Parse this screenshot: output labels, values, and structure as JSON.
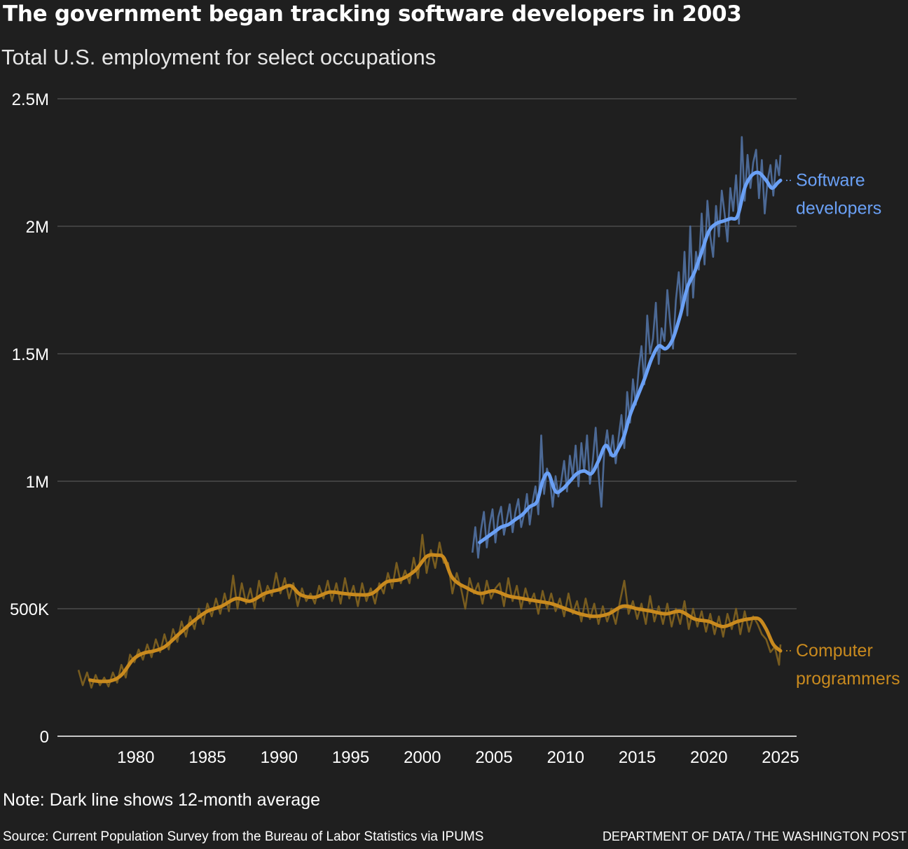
{
  "header": {
    "title": "The government began tracking software developers in 2003",
    "subtitle": "Total U.S. employment for select occupations"
  },
  "footer": {
    "note": "Note: Dark line shows 12-month average",
    "source": "Source: Current Population Survey from the Bureau of Labor Statistics via IPUMS",
    "credit": "DEPARTMENT OF DATA / THE WASHINGTON POST"
  },
  "colors": {
    "background": "#1f1f1f",
    "software_avg": "#6aa0f5",
    "software_raw": "#4f6e9c",
    "programmers_avg": "#c98a1e",
    "programmers_raw": "#7d6020",
    "grid": "#555555"
  },
  "chart_data": {
    "type": "line",
    "title": "The government began tracking software developers in 2003",
    "subtitle": "Total U.S. employment for select occupations",
    "xlabel": "",
    "ylabel": "",
    "xlim": [
      1976,
      2025
    ],
    "ylim": [
      0,
      2500000
    ],
    "x_ticks": [
      1980,
      1985,
      1990,
      1995,
      2000,
      2005,
      2010,
      2015,
      2020,
      2025
    ],
    "y_ticks": [
      0,
      500000,
      1000000,
      1500000,
      2000000,
      2500000
    ],
    "y_tick_labels": [
      "0",
      "500K",
      "1M",
      "1.5M",
      "2M",
      "2.5M"
    ],
    "grid": true,
    "series": [
      {
        "name": "Software developers",
        "label_lines": [
          "Software",
          "developers"
        ],
        "average": {
          "x": [
            2004.0,
            2004.5,
            2005.0,
            2005.5,
            2006.0,
            2006.5,
            2007.0,
            2007.5,
            2008.0,
            2008.4,
            2008.8,
            2009.3,
            2009.8,
            2010.3,
            2010.8,
            2011.3,
            2011.8,
            2012.3,
            2012.8,
            2013.3,
            2013.7,
            2014.1,
            2014.5,
            2015.0,
            2015.5,
            2016.0,
            2016.5,
            2017.0,
            2017.5,
            2018.0,
            2018.5,
            2019.0,
            2019.5,
            2020.0,
            2020.5,
            2021.0,
            2021.5,
            2022.0,
            2022.5,
            2023.0,
            2023.5,
            2024.0,
            2024.4,
            2024.8,
            2025.0
          ],
          "y": [
            760000,
            780000,
            800000,
            820000,
            830000,
            850000,
            870000,
            900000,
            920000,
            1000000,
            1030000,
            960000,
            970000,
            1000000,
            1030000,
            1040000,
            1030000,
            1080000,
            1140000,
            1100000,
            1130000,
            1180000,
            1260000,
            1330000,
            1400000,
            1480000,
            1530000,
            1520000,
            1560000,
            1650000,
            1760000,
            1820000,
            1900000,
            1980000,
            2010000,
            2020000,
            2030000,
            2040000,
            2150000,
            2200000,
            2210000,
            2180000,
            2150000,
            2170000,
            2180000
          ]
        },
        "monthly": {
          "x": [
            2003.5,
            2003.7,
            2003.9,
            2004.1,
            2004.3,
            2004.5,
            2004.7,
            2004.9,
            2005.1,
            2005.3,
            2005.5,
            2005.7,
            2005.9,
            2006.1,
            2006.3,
            2006.5,
            2006.7,
            2006.9,
            2007.1,
            2007.3,
            2007.5,
            2007.7,
            2007.9,
            2008.1,
            2008.3,
            2008.5,
            2008.7,
            2008.9,
            2009.1,
            2009.3,
            2009.5,
            2009.7,
            2009.9,
            2010.1,
            2010.3,
            2010.5,
            2010.7,
            2010.9,
            2011.1,
            2011.3,
            2011.5,
            2011.7,
            2011.9,
            2012.1,
            2012.3,
            2012.5,
            2012.7,
            2012.9,
            2013.1,
            2013.3,
            2013.5,
            2013.7,
            2013.9,
            2014.1,
            2014.3,
            2014.5,
            2014.7,
            2014.9,
            2015.1,
            2015.3,
            2015.5,
            2015.7,
            2015.9,
            2016.1,
            2016.3,
            2016.5,
            2016.7,
            2016.9,
            2017.1,
            2017.3,
            2017.5,
            2017.7,
            2017.9,
            2018.1,
            2018.3,
            2018.5,
            2018.7,
            2018.9,
            2019.1,
            2019.3,
            2019.5,
            2019.7,
            2019.9,
            2020.1,
            2020.3,
            2020.5,
            2020.7,
            2020.9,
            2021.1,
            2021.3,
            2021.5,
            2021.7,
            2021.9,
            2022.1,
            2022.3,
            2022.5,
            2022.7,
            2022.9,
            2023.1,
            2023.3,
            2023.5,
            2023.7,
            2023.9,
            2024.1,
            2024.3,
            2024.5,
            2024.7,
            2024.9,
            2025.0
          ],
          "y": [
            720000,
            820000,
            700000,
            810000,
            880000,
            740000,
            830000,
            890000,
            760000,
            860000,
            900000,
            790000,
            850000,
            910000,
            800000,
            880000,
            930000,
            820000,
            870000,
            950000,
            830000,
            920000,
            980000,
            870000,
            1180000,
            950000,
            1050000,
            1010000,
            900000,
            1020000,
            940000,
            1000000,
            1080000,
            960000,
            1100000,
            1020000,
            1140000,
            980000,
            1150000,
            1040000,
            1180000,
            990000,
            1080000,
            1210000,
            1030000,
            900000,
            1120000,
            1200000,
            1100000,
            1180000,
            1070000,
            1170000,
            1260000,
            1130000,
            1350000,
            1230000,
            1400000,
            1300000,
            1440000,
            1530000,
            1380000,
            1650000,
            1500000,
            1560000,
            1700000,
            1460000,
            1600000,
            1550000,
            1750000,
            1620000,
            1520000,
            1710000,
            1820000,
            1660000,
            1900000,
            1650000,
            2000000,
            1720000,
            1900000,
            1830000,
            2050000,
            1850000,
            2100000,
            1960000,
            1880000,
            2080000,
            1960000,
            2140000,
            2050000,
            1940000,
            2150000,
            2060000,
            2200000,
            2010000,
            2350000,
            2100000,
            2280000,
            2150000,
            2250000,
            2300000,
            2110000,
            2260000,
            2050000,
            2180000,
            2240000,
            2120000,
            2260000,
            2200000,
            2280000
          ]
        }
      },
      {
        "name": "Computer programmers",
        "label_lines": [
          "Computer",
          "programmers"
        ],
        "average": {
          "x": [
            1976.8,
            1977.5,
            1978.3,
            1979.0,
            1979.8,
            1980.5,
            1981.3,
            1982.0,
            1983.0,
            1984.0,
            1985.0,
            1986.0,
            1987.0,
            1988.0,
            1989.0,
            1990.0,
            1990.8,
            1991.5,
            1992.5,
            1993.5,
            1994.5,
            1995.5,
            1996.5,
            1997.5,
            1998.5,
            1999.5,
            2000.3,
            2001.0,
            2001.5,
            2002.0,
            2002.5,
            2003.0,
            2004.0,
            2005.0,
            2006.0,
            2007.0,
            2008.0,
            2009.0,
            2010.0,
            2011.0,
            2012.0,
            2013.0,
            2014.0,
            2015.0,
            2016.0,
            2017.0,
            2018.0,
            2019.0,
            2020.0,
            2021.0,
            2022.0,
            2022.8,
            2023.5,
            2024.0,
            2024.5,
            2025.0
          ],
          "y": [
            220000,
            215000,
            218000,
            240000,
            300000,
            325000,
            335000,
            350000,
            400000,
            450000,
            490000,
            510000,
            540000,
            530000,
            560000,
            575000,
            590000,
            555000,
            545000,
            565000,
            560000,
            555000,
            560000,
            605000,
            615000,
            650000,
            705000,
            710000,
            700000,
            630000,
            600000,
            585000,
            560000,
            570000,
            550000,
            540000,
            530000,
            520000,
            500000,
            480000,
            470000,
            480000,
            510000,
            500000,
            490000,
            480000,
            490000,
            460000,
            450000,
            430000,
            450000,
            460000,
            460000,
            420000,
            360000,
            335000
          ]
        },
        "monthly": {
          "x": [
            1976.0,
            1976.3,
            1976.6,
            1976.9,
            1977.2,
            1977.5,
            1977.8,
            1978.1,
            1978.4,
            1978.7,
            1979.0,
            1979.3,
            1979.6,
            1979.9,
            1980.2,
            1980.5,
            1980.8,
            1981.1,
            1981.4,
            1981.7,
            1982.0,
            1982.3,
            1982.6,
            1982.9,
            1983.2,
            1983.5,
            1983.8,
            1984.1,
            1984.4,
            1984.7,
            1985.0,
            1985.3,
            1985.6,
            1985.9,
            1986.2,
            1986.5,
            1986.8,
            1987.1,
            1987.4,
            1987.7,
            1988.0,
            1988.3,
            1988.6,
            1988.9,
            1989.2,
            1989.5,
            1989.8,
            1990.1,
            1990.4,
            1990.7,
            1991.0,
            1991.3,
            1991.6,
            1991.9,
            1992.2,
            1992.5,
            1992.8,
            1993.1,
            1993.4,
            1993.7,
            1994.0,
            1994.3,
            1994.6,
            1994.9,
            1995.2,
            1995.5,
            1995.8,
            1996.1,
            1996.4,
            1996.7,
            1997.0,
            1997.3,
            1997.6,
            1997.9,
            1998.2,
            1998.5,
            1998.8,
            1999.1,
            1999.4,
            1999.7,
            2000.0,
            2000.3,
            2000.6,
            2000.9,
            2001.2,
            2001.5,
            2001.8,
            2002.1,
            2002.4,
            2002.7,
            2003.0,
            2003.3,
            2003.6,
            2003.9,
            2004.2,
            2004.5,
            2004.8,
            2005.1,
            2005.4,
            2005.7,
            2006.0,
            2006.3,
            2006.6,
            2006.9,
            2007.2,
            2007.5,
            2007.8,
            2008.1,
            2008.4,
            2008.7,
            2009.0,
            2009.3,
            2009.6,
            2009.9,
            2010.2,
            2010.5,
            2010.8,
            2011.1,
            2011.4,
            2011.7,
            2012.0,
            2012.3,
            2012.6,
            2012.9,
            2013.2,
            2013.5,
            2013.8,
            2014.1,
            2014.4,
            2014.7,
            2015.0,
            2015.3,
            2015.6,
            2015.9,
            2016.2,
            2016.5,
            2016.8,
            2017.1,
            2017.4,
            2017.7,
            2018.0,
            2018.3,
            2018.6,
            2018.9,
            2019.2,
            2019.5,
            2019.8,
            2020.1,
            2020.4,
            2020.7,
            2021.0,
            2021.3,
            2021.6,
            2021.9,
            2022.2,
            2022.5,
            2022.8,
            2023.1,
            2023.4,
            2023.7,
            2024.0,
            2024.3,
            2024.6,
            2024.9,
            2025.0
          ],
          "y": [
            260000,
            200000,
            250000,
            190000,
            240000,
            200000,
            230000,
            195000,
            250000,
            210000,
            280000,
            230000,
            320000,
            290000,
            340000,
            300000,
            360000,
            310000,
            380000,
            330000,
            400000,
            340000,
            420000,
            370000,
            450000,
            390000,
            470000,
            420000,
            500000,
            440000,
            520000,
            470000,
            540000,
            480000,
            560000,
            490000,
            630000,
            500000,
            600000,
            520000,
            580000,
            500000,
            610000,
            530000,
            590000,
            550000,
            640000,
            560000,
            620000,
            540000,
            600000,
            510000,
            580000,
            530000,
            560000,
            520000,
            590000,
            540000,
            610000,
            530000,
            600000,
            520000,
            620000,
            540000,
            590000,
            510000,
            600000,
            530000,
            580000,
            520000,
            600000,
            560000,
            640000,
            580000,
            680000,
            600000,
            650000,
            600000,
            700000,
            620000,
            790000,
            640000,
            730000,
            660000,
            760000,
            680000,
            680000,
            560000,
            640000,
            580000,
            500000,
            620000,
            560000,
            600000,
            520000,
            610000,
            540000,
            580000,
            600000,
            510000,
            620000,
            530000,
            590000,
            500000,
            580000,
            520000,
            560000,
            480000,
            570000,
            500000,
            560000,
            490000,
            540000,
            470000,
            560000,
            480000,
            530000,
            450000,
            540000,
            460000,
            520000,
            440000,
            510000,
            450000,
            500000,
            440000,
            530000,
            610000,
            480000,
            530000,
            460000,
            520000,
            440000,
            550000,
            450000,
            510000,
            440000,
            520000,
            430000,
            500000,
            440000,
            530000,
            420000,
            500000,
            430000,
            490000,
            410000,
            480000,
            400000,
            470000,
            390000,
            480000,
            420000,
            500000,
            400000,
            490000,
            410000,
            470000,
            440000,
            400000,
            380000,
            330000,
            350000,
            280000,
            360000
          ]
        }
      }
    ]
  }
}
